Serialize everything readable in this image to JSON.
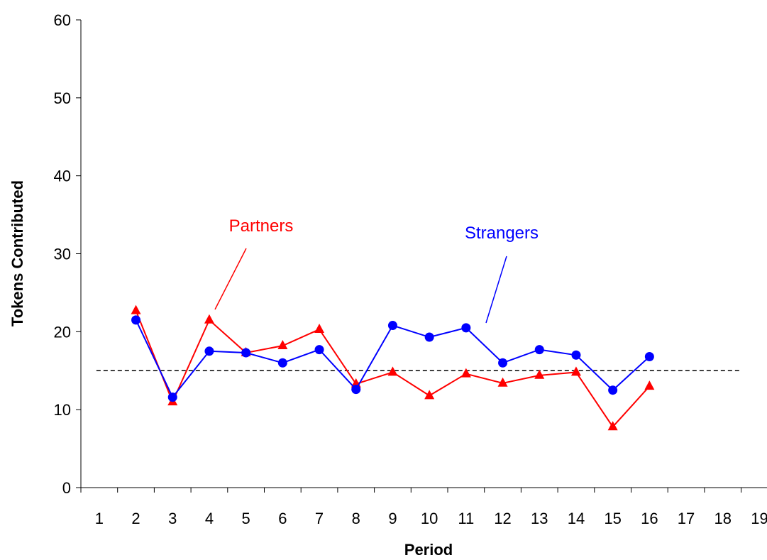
{
  "chart_data": {
    "type": "line",
    "xlabel": "Period",
    "ylabel": "Tokens Contributed",
    "ylim": [
      0,
      60
    ],
    "yticks": [
      0,
      10,
      20,
      30,
      40,
      50,
      60
    ],
    "categories": [
      "1",
      "2",
      "3",
      "4",
      "5",
      "6",
      "7",
      "8",
      "9",
      "10",
      "11",
      "12",
      "13",
      "14",
      "15",
      "16",
      "17",
      "18",
      "19"
    ],
    "grid": false,
    "reference_line": {
      "y": 15,
      "style": "dashed",
      "color": "#000000"
    },
    "series": [
      {
        "name": "Partners",
        "color": "#ff0000",
        "marker": "triangle",
        "x": [
          2,
          3,
          4,
          5,
          6,
          7,
          8,
          9,
          10,
          11,
          12,
          13,
          14,
          15,
          16
        ],
        "values": [
          22.7,
          11.0,
          21.5,
          17.3,
          18.2,
          20.3,
          13.3,
          14.8,
          11.8,
          14.6,
          13.4,
          14.4,
          14.8,
          7.8,
          13.0
        ]
      },
      {
        "name": "Strangers",
        "color": "#0000ff",
        "marker": "circle",
        "x": [
          2,
          3,
          4,
          5,
          6,
          7,
          8,
          9,
          10,
          11,
          12,
          13,
          14,
          15,
          16
        ],
        "values": [
          21.5,
          11.6,
          17.5,
          17.3,
          16.0,
          17.7,
          12.6,
          20.8,
          19.3,
          20.5,
          16.0,
          17.7,
          17.0,
          12.5,
          16.8
        ]
      }
    ]
  }
}
